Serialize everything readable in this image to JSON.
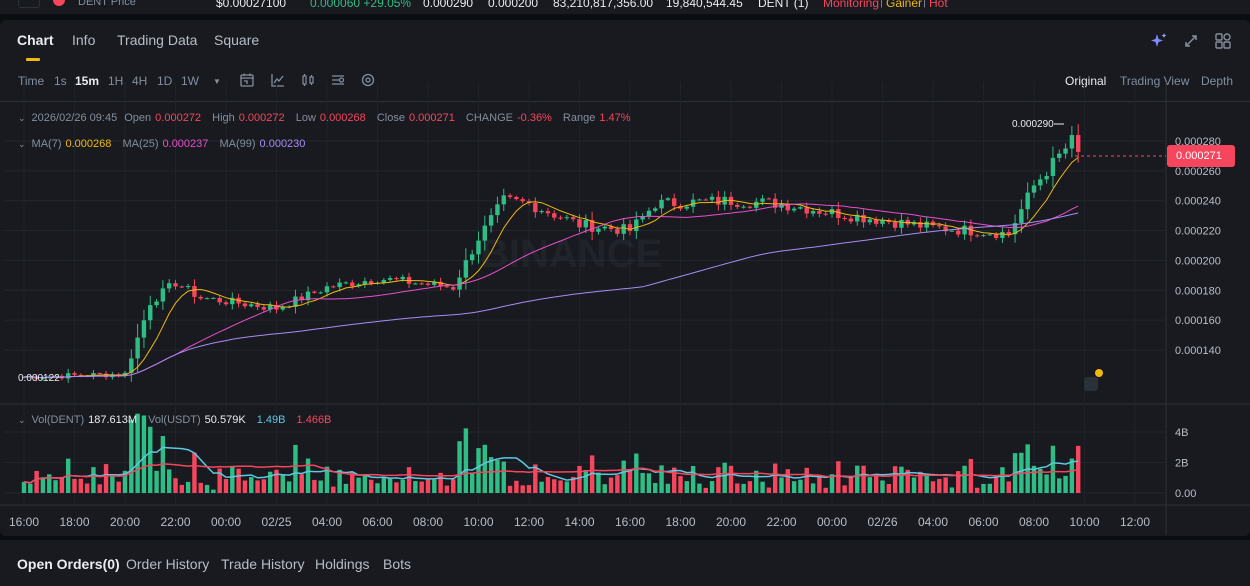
{
  "ticker": {
    "symbol_label": "DENT Price",
    "price": "$0.00027100",
    "change": "0.000060 +29.05%",
    "high": "0.000290",
    "low": "0.000200",
    "vol_dent": "83,210,817,356.00",
    "vol_usdt": "19,840,544.45",
    "pair": "DENT (1)",
    "tag1": "Monitoring",
    "tag2": "Gainer",
    "tag3": "Hot",
    "sep": "|"
  },
  "tabs": [
    "Chart",
    "Info",
    "Trading Data",
    "Square"
  ],
  "toolbar": {
    "intervals": [
      "Time",
      "1s",
      "15m",
      "1H",
      "4H",
      "1D",
      "1W"
    ],
    "active_interval": "15m",
    "views": [
      "Original",
      "Trading View",
      "Depth"
    ],
    "dropdown_glyph": "▼"
  },
  "ohlc": {
    "date": "2026/02/26 09:45",
    "open_label": "Open",
    "open": "0.000272",
    "high_label": "High",
    "high": "0.000272",
    "low_label": "Low",
    "low": "0.000268",
    "close_label": "Close",
    "close": "0.000271",
    "change_label": "CHANGE",
    "change": "-0.36%",
    "range_label": "Range",
    "range": "1.47%"
  },
  "ma": {
    "ma7_label": "MA(7)",
    "ma7": "0.000268",
    "ma25_label": "MA(25)",
    "ma25": "0.000237",
    "ma99_label": "MA(99)",
    "ma99": "0.000230"
  },
  "volume_info": {
    "label1": "Vol(DENT)",
    "v1": "187.613M",
    "label2": "Vol(USDT)",
    "v2": "50.579K",
    "v3": "1.49B",
    "v4": "1.466B"
  },
  "current_price_tag": "0.000271",
  "high_marker": "0.000290",
  "low_marker": "0.000122",
  "watermark": "BINANCE",
  "bottom_tabs": [
    "Open Orders(0)",
    "Order History",
    "Trade History",
    "Holdings",
    "Bots"
  ],
  "colors": {
    "up": "#2ebd85",
    "down": "#f6465d",
    "ma7": "#f0b90b",
    "ma25": "#e84fcb",
    "ma99": "#a68cf5",
    "accent": "#f0b90b"
  },
  "chart_data": {
    "type": "candlestick",
    "price_axis_ticks": [
      "0.000280",
      "0.000260",
      "0.000240",
      "0.000220",
      "0.000200",
      "0.000180",
      "0.000160",
      "0.000140"
    ],
    "price_axis_values": [
      0.00028,
      0.00026,
      0.00024,
      0.00022,
      0.0002,
      0.00018,
      0.00016,
      0.00014
    ],
    "volume_axis_ticks": [
      "4B",
      "2B",
      "0.00"
    ],
    "volume_axis_values": [
      4,
      2,
      0
    ],
    "time_axis_ticks": [
      "16:00",
      "18:00",
      "20:00",
      "22:00",
      "00:00",
      "02/25",
      "04:00",
      "06:00",
      "08:00",
      "10:00",
      "12:00",
      "14:00",
      "16:00",
      "18:00",
      "20:00",
      "22:00",
      "00:00",
      "02/26",
      "04:00",
      "06:00",
      "08:00",
      "10:00",
      "12:00"
    ],
    "price_range": [
      0.000115,
      0.000295
    ],
    "volume_range": [
      0,
      5.3
    ],
    "candle_interval": "15m",
    "key_points": [
      {
        "t": "16:00",
        "close": 0.000122
      },
      {
        "t": "20:00",
        "close": 0.000124
      },
      {
        "t": "21:00",
        "close": 0.000172
      },
      {
        "t": "22:00",
        "close": 0.000185
      },
      {
        "t": "23:00",
        "close": 0.000175
      },
      {
        "t": "02:00",
        "close": 0.000168
      },
      {
        "t": "04:00",
        "close": 0.000182
      },
      {
        "t": "06:00",
        "close": 0.000188
      },
      {
        "t": "09:00",
        "close": 0.000182
      },
      {
        "t": "10:00",
        "close": 0.000215
      },
      {
        "t": "11:00",
        "close": 0.00024
      },
      {
        "t": "12:00",
        "close": 0.000238
      },
      {
        "t": "14:00",
        "close": 0.000224
      },
      {
        "t": "16:00",
        "close": 0.00022
      },
      {
        "t": "17:00",
        "close": 0.000238
      },
      {
        "t": "20:00",
        "close": 0.00024
      },
      {
        "t": "22:00",
        "close": 0.000238
      },
      {
        "t": "00:00",
        "close": 0.000232
      },
      {
        "t": "04:00",
        "close": 0.000222
      },
      {
        "t": "07:00",
        "close": 0.000218
      },
      {
        "t": "08:00",
        "close": 0.00025
      },
      {
        "t": "09:30",
        "close": 0.00028
      },
      {
        "t": "09:45",
        "close": 0.000271
      }
    ]
  }
}
